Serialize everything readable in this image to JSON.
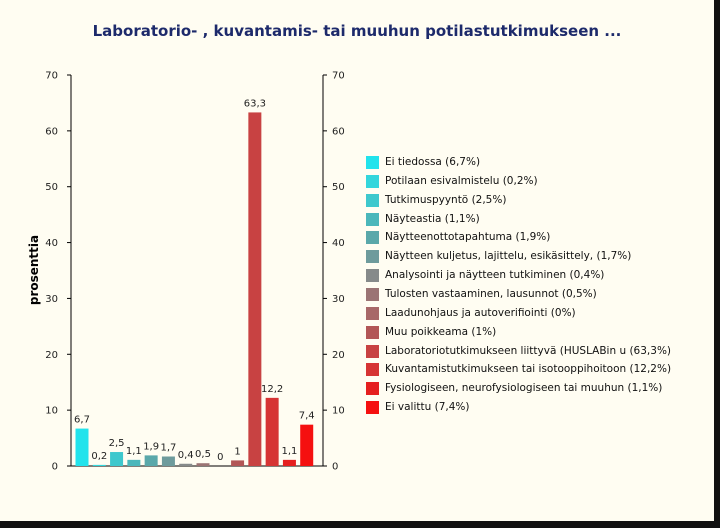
{
  "chart_data": {
    "type": "bar",
    "title": "Laboratorio- , kuvantamis- tai muuhun potilastutkimukseen ...",
    "ylabel": "prosenttia",
    "xlabel": "",
    "ylim": [
      0,
      70
    ],
    "yticks": [
      "0",
      "10",
      "20",
      "30",
      "40",
      "50",
      "60",
      "70"
    ],
    "legend_position": "right",
    "categories": [
      "Ei tiedossa (6,7%)",
      "Potilaan esivalmistelu (0,2%)",
      "Tutkimuspyyntö (2,5%)",
      "Näyteastia (1,1%)",
      "Näytteenottotapahtuma (1,9%)",
      "Näytteen kuljetus, lajittelu, esikäsittely,  (1,7%)",
      "Analysointi ja näytteen tutkiminen (0,4%)",
      "Tulosten vastaaminen, lausunnot (0,5%)",
      "Laadunohjaus ja autoverifiointi (0%)",
      "Muu poikkeama (1%)",
      "Laboratoriotutkimukseen liittyvä (HUSLABin u (63,3%)",
      "Kuvantamistutkimukseen tai isotooppihoitoon  (12,2%)",
      "Fysiologiseen, neurofysiologiseen tai muuhun (1,1%)",
      "Ei valittu (7,4%)"
    ],
    "values": [
      6.7,
      0.2,
      2.5,
      1.1,
      1.9,
      1.7,
      0.4,
      0.5,
      0,
      1,
      63.3,
      12.2,
      1.1,
      7.4
    ],
    "value_labels": [
      "6,7",
      "0,2",
      "2,5",
      "1,1",
      "1,9",
      "1,7",
      "0,4",
      "0,5",
      "0",
      "1",
      "63,3",
      "12,2",
      "1,1",
      "7,4"
    ],
    "colors": [
      "#22e3ec",
      "#33d6dc",
      "#3ec8cd",
      "#4bb7bb",
      "#5aa8aa",
      "#6e9b9c",
      "#868a8a",
      "#9b7474",
      "#a86868",
      "#b25656",
      "#c84242",
      "#d63434",
      "#e51f1f",
      "#f51010"
    ]
  }
}
